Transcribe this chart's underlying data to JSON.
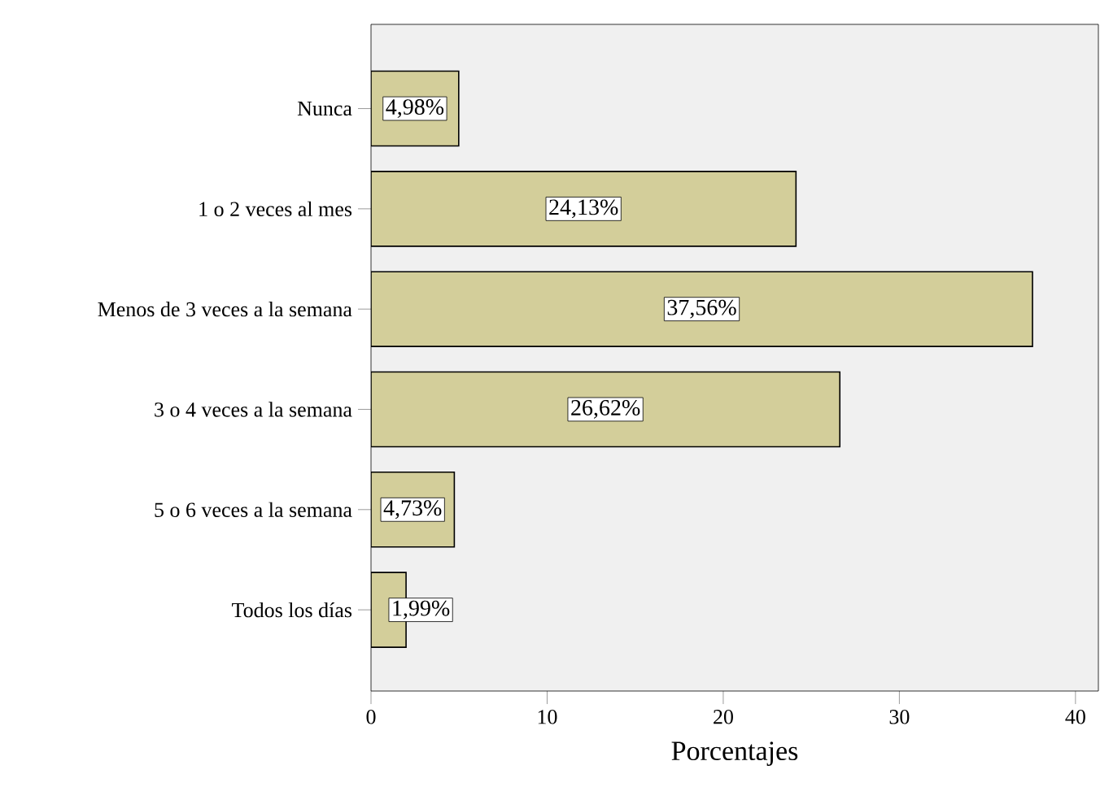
{
  "chart_data": {
    "type": "bar",
    "orientation": "horizontal",
    "xlabel": "Porcentajes",
    "categories": [
      "Nunca",
      "1 o 2 veces al mes",
      "Menos de 3 veces a la semana",
      "3 o 4 veces a la semana",
      "5 o 6 veces a la semana",
      "Todos los días"
    ],
    "values": [
      4.98,
      24.13,
      37.56,
      26.62,
      4.73,
      1.99
    ],
    "value_labels": [
      "4,98%",
      "24,13%",
      "37,56%",
      "26,62%",
      "4,73%",
      "1,99%"
    ],
    "color": "#d3ce9a",
    "xlim": [
      0,
      41.3
    ],
    "xticks": [
      0,
      10,
      20,
      30,
      40
    ],
    "grid": false
  }
}
